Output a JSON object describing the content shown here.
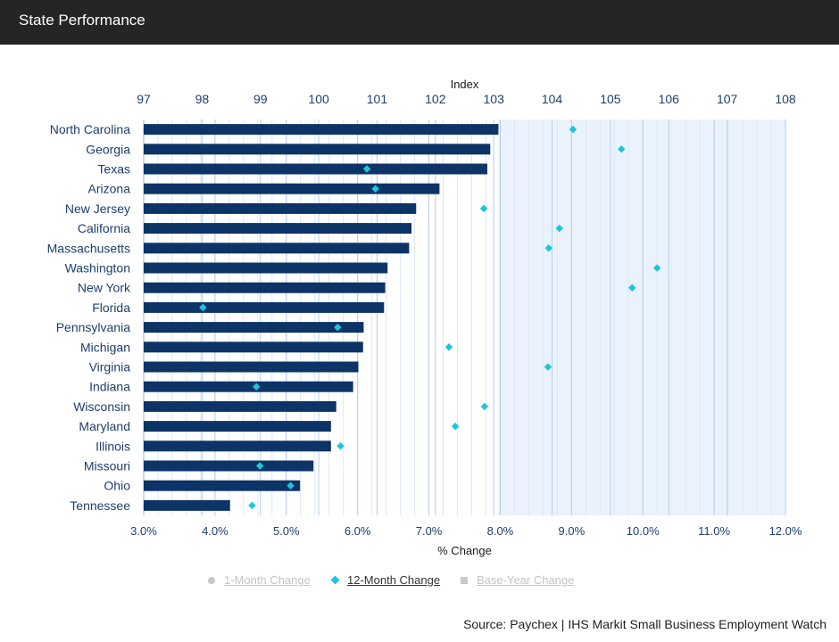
{
  "header": {
    "title": "State Performance"
  },
  "chart_data": {
    "type": "bar",
    "orientation": "horizontal",
    "categories": [
      "North Carolina",
      "Georgia",
      "Texas",
      "Arizona",
      "New Jersey",
      "California",
      "Massachusetts",
      "Washington",
      "New York",
      "Florida",
      "Pennsylvania",
      "Michigan",
      "Virginia",
      "Indiana",
      "Wisconsin",
      "Maryland",
      "Illinois",
      "Missouri",
      "Ohio",
      "Tennessee"
    ],
    "series": [
      {
        "name": "Index",
        "type": "bar",
        "axis": "top",
        "color": "#0d3466",
        "values": [
          103.08,
          102.94,
          102.89,
          102.07,
          101.67,
          101.59,
          101.55,
          101.18,
          101.14,
          101.12,
          100.77,
          100.76,
          100.68,
          100.59,
          100.3,
          100.21,
          100.21,
          99.91,
          99.68,
          98.48
        ]
      },
      {
        "name": "12-Month Change",
        "type": "scatter",
        "marker": "diamond",
        "axis": "bottom",
        "color": "#1cc6dd",
        "values": [
          9.02,
          9.7,
          6.13,
          6.25,
          7.77,
          8.83,
          8.68,
          10.2,
          9.85,
          3.83,
          5.72,
          7.28,
          8.67,
          4.58,
          7.78,
          7.37,
          5.76,
          4.63,
          5.06,
          4.52
        ]
      }
    ],
    "x_top": {
      "label": "Index",
      "range": [
        97,
        108
      ],
      "ticks": [
        "97",
        "98",
        "99",
        "100",
        "101",
        "102",
        "103",
        "104",
        "105",
        "106",
        "107",
        "108"
      ]
    },
    "x_bottom": {
      "label": "% Change",
      "range": [
        3.0,
        12.0
      ],
      "ticks": [
        "3.0%",
        "4.0%",
        "5.0%",
        "6.0%",
        "7.0%",
        "8.0%",
        "9.0%",
        "10.0%",
        "11.0%",
        "12.0%"
      ]
    },
    "grid": true,
    "colors": {
      "bar": "#0d3466",
      "marker": "#1cc6dd",
      "axis_text": "#1c3f6e",
      "grid": "#b5cde8",
      "highlight_bg": "#eaf3fd"
    }
  },
  "legend": {
    "items": [
      {
        "label": "1-Month Change",
        "state": "off"
      },
      {
        "label": "12-Month Change",
        "state": "on"
      },
      {
        "label": "Base-Year Change",
        "state": "off"
      }
    ]
  },
  "source": "Source: Paychex | IHS Markit Small Business Employment Watch"
}
